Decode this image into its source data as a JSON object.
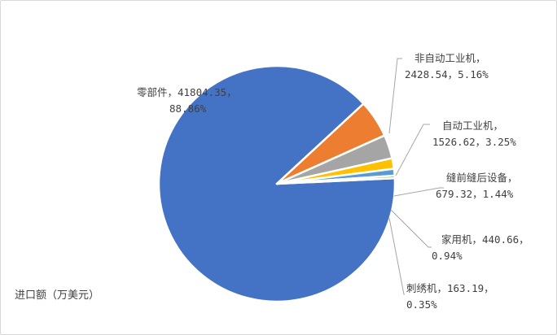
{
  "chart_data": {
    "type": "pie",
    "ylabel": "进口额（万美元）",
    "slices": [
      {
        "label": "零部件",
        "value": 41804.35,
        "value_text": "41804.35",
        "percent": 88.86,
        "percent_text": "88.86%",
        "color": "#4472C4"
      },
      {
        "label": "非自动工业机",
        "value": 2428.54,
        "value_text": "2428.54",
        "percent": 5.16,
        "percent_text": "5.16%",
        "color": "#ED7D31"
      },
      {
        "label": "自动工业机",
        "value": 1526.62,
        "value_text": "1526.62",
        "percent": 3.25,
        "percent_text": "3.25%",
        "color": "#A5A5A5"
      },
      {
        "label": "缝前缝后设备",
        "value": 679.32,
        "value_text": "679.32",
        "percent": 1.44,
        "percent_text": "1.44%",
        "color": "#FFC000"
      },
      {
        "label": "家用机",
        "value": 440.66,
        "value_text": "440.66",
        "percent": 0.94,
        "percent_text": "0.94%",
        "color": "#5B9BD5"
      },
      {
        "label": "刺绣机",
        "value": 163.19,
        "value_text": "163.19",
        "percent": 0.35,
        "percent_text": "0.35%",
        "color": "#70AD47"
      }
    ]
  }
}
